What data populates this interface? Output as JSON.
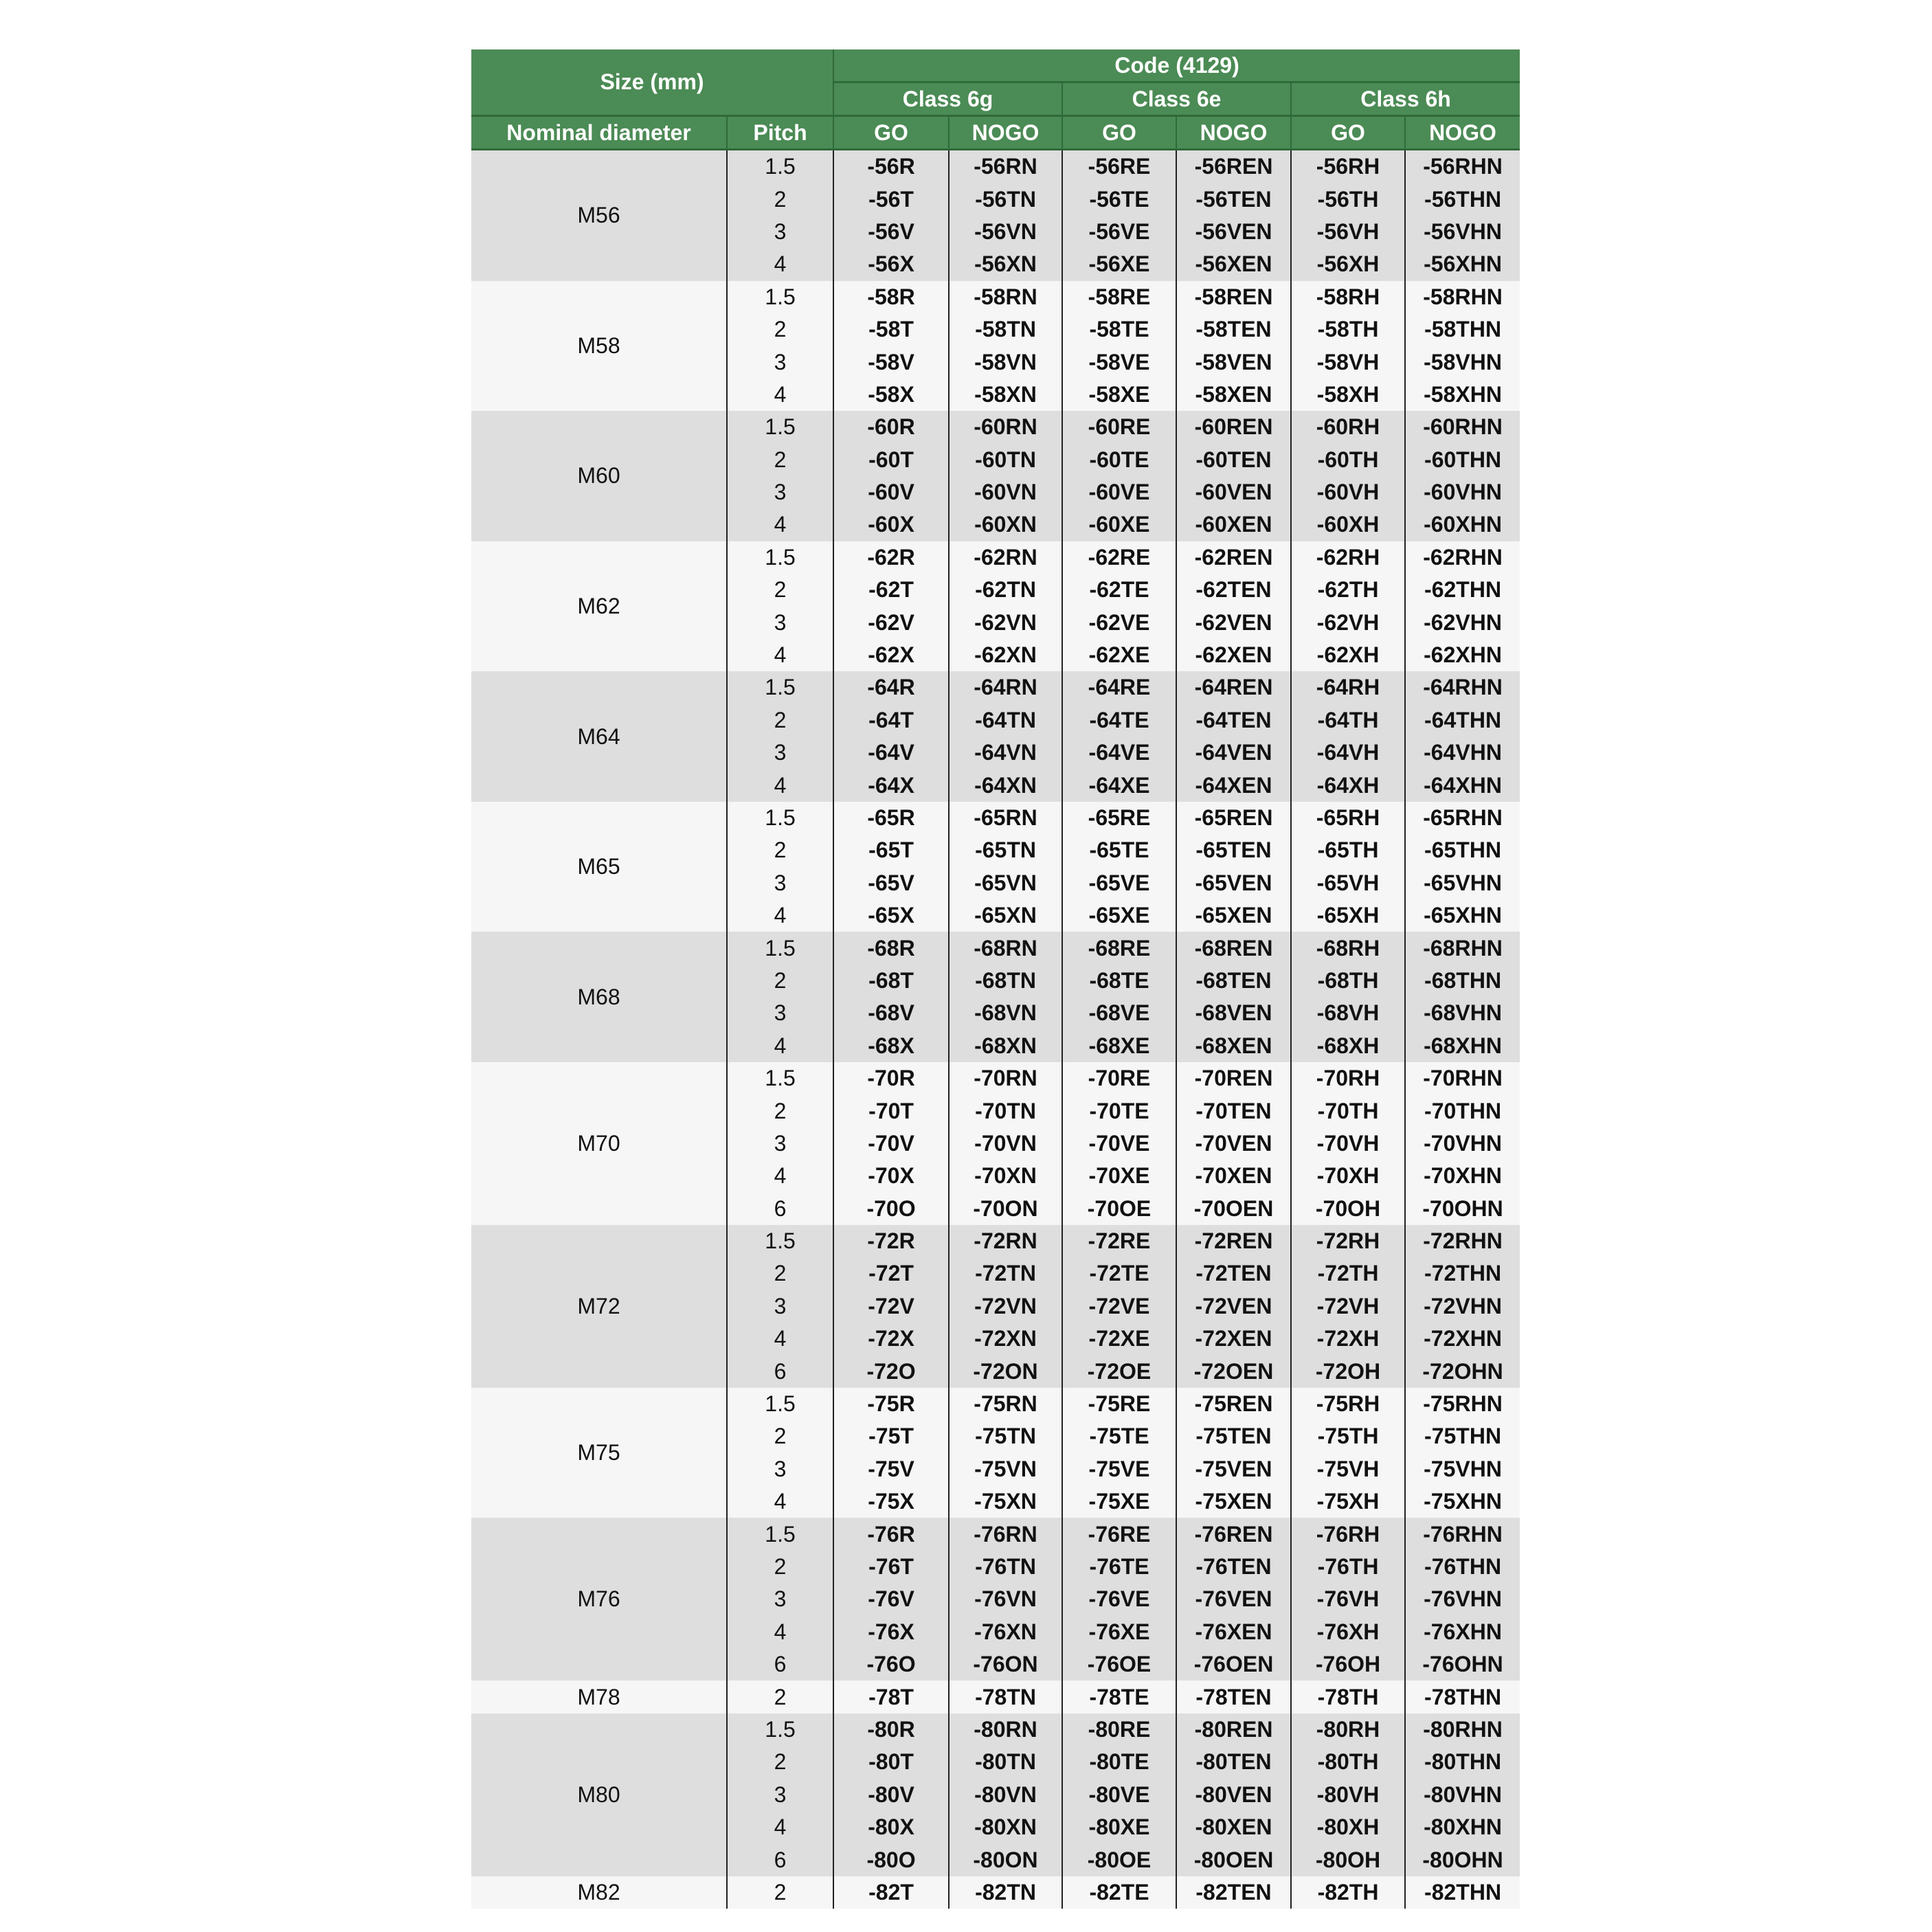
{
  "header": {
    "size_label": "Size (mm)",
    "code_label": "Code (4129)",
    "classes": [
      "Class 6g",
      "Class 6e",
      "Class 6h"
    ],
    "nominal_label": "Nominal diameter",
    "pitch_label": "Pitch",
    "sub_labels": [
      "GO",
      "NOGO",
      "GO",
      "NOGO",
      "GO",
      "NOGO"
    ]
  },
  "colors": {
    "header_bg": "#4b8b55",
    "row_dark": "#dedede",
    "row_light": "#f6f6f6"
  },
  "groups": [
    {
      "size": "M56",
      "rows": [
        {
          "pitch": "1.5",
          "codes": [
            "-56R",
            "-56RN",
            "-56RE",
            "-56REN",
            "-56RH",
            "-56RHN"
          ]
        },
        {
          "pitch": "2",
          "codes": [
            "-56T",
            "-56TN",
            "-56TE",
            "-56TEN",
            "-56TH",
            "-56THN"
          ]
        },
        {
          "pitch": "3",
          "codes": [
            "-56V",
            "-56VN",
            "-56VE",
            "-56VEN",
            "-56VH",
            "-56VHN"
          ]
        },
        {
          "pitch": "4",
          "codes": [
            "-56X",
            "-56XN",
            "-56XE",
            "-56XEN",
            "-56XH",
            "-56XHN"
          ]
        }
      ]
    },
    {
      "size": "M58",
      "rows": [
        {
          "pitch": "1.5",
          "codes": [
            "-58R",
            "-58RN",
            "-58RE",
            "-58REN",
            "-58RH",
            "-58RHN"
          ]
        },
        {
          "pitch": "2",
          "codes": [
            "-58T",
            "-58TN",
            "-58TE",
            "-58TEN",
            "-58TH",
            "-58THN"
          ]
        },
        {
          "pitch": "3",
          "codes": [
            "-58V",
            "-58VN",
            "-58VE",
            "-58VEN",
            "-58VH",
            "-58VHN"
          ]
        },
        {
          "pitch": "4",
          "codes": [
            "-58X",
            "-58XN",
            "-58XE",
            "-58XEN",
            "-58XH",
            "-58XHN"
          ]
        }
      ]
    },
    {
      "size": "M60",
      "rows": [
        {
          "pitch": "1.5",
          "codes": [
            "-60R",
            "-60RN",
            "-60RE",
            "-60REN",
            "-60RH",
            "-60RHN"
          ]
        },
        {
          "pitch": "2",
          "codes": [
            "-60T",
            "-60TN",
            "-60TE",
            "-60TEN",
            "-60TH",
            "-60THN"
          ]
        },
        {
          "pitch": "3",
          "codes": [
            "-60V",
            "-60VN",
            "-60VE",
            "-60VEN",
            "-60VH",
            "-60VHN"
          ]
        },
        {
          "pitch": "4",
          "codes": [
            "-60X",
            "-60XN",
            "-60XE",
            "-60XEN",
            "-60XH",
            "-60XHN"
          ]
        }
      ]
    },
    {
      "size": "M62",
      "rows": [
        {
          "pitch": "1.5",
          "codes": [
            "-62R",
            "-62RN",
            "-62RE",
            "-62REN",
            "-62RH",
            "-62RHN"
          ]
        },
        {
          "pitch": "2",
          "codes": [
            "-62T",
            "-62TN",
            "-62TE",
            "-62TEN",
            "-62TH",
            "-62THN"
          ]
        },
        {
          "pitch": "3",
          "codes": [
            "-62V",
            "-62VN",
            "-62VE",
            "-62VEN",
            "-62VH",
            "-62VHN"
          ]
        },
        {
          "pitch": "4",
          "codes": [
            "-62X",
            "-62XN",
            "-62XE",
            "-62XEN",
            "-62XH",
            "-62XHN"
          ]
        }
      ]
    },
    {
      "size": "M64",
      "rows": [
        {
          "pitch": "1.5",
          "codes": [
            "-64R",
            "-64RN",
            "-64RE",
            "-64REN",
            "-64RH",
            "-64RHN"
          ]
        },
        {
          "pitch": "2",
          "codes": [
            "-64T",
            "-64TN",
            "-64TE",
            "-64TEN",
            "-64TH",
            "-64THN"
          ]
        },
        {
          "pitch": "3",
          "codes": [
            "-64V",
            "-64VN",
            "-64VE",
            "-64VEN",
            "-64VH",
            "-64VHN"
          ]
        },
        {
          "pitch": "4",
          "codes": [
            "-64X",
            "-64XN",
            "-64XE",
            "-64XEN",
            "-64XH",
            "-64XHN"
          ]
        }
      ]
    },
    {
      "size": "M65",
      "rows": [
        {
          "pitch": "1.5",
          "codes": [
            "-65R",
            "-65RN",
            "-65RE",
            "-65REN",
            "-65RH",
            "-65RHN"
          ]
        },
        {
          "pitch": "2",
          "codes": [
            "-65T",
            "-65TN",
            "-65TE",
            "-65TEN",
            "-65TH",
            "-65THN"
          ]
        },
        {
          "pitch": "3",
          "codes": [
            "-65V",
            "-65VN",
            "-65VE",
            "-65VEN",
            "-65VH",
            "-65VHN"
          ]
        },
        {
          "pitch": "4",
          "codes": [
            "-65X",
            "-65XN",
            "-65XE",
            "-65XEN",
            "-65XH",
            "-65XHN"
          ]
        }
      ]
    },
    {
      "size": "M68",
      "rows": [
        {
          "pitch": "1.5",
          "codes": [
            "-68R",
            "-68RN",
            "-68RE",
            "-68REN",
            "-68RH",
            "-68RHN"
          ]
        },
        {
          "pitch": "2",
          "codes": [
            "-68T",
            "-68TN",
            "-68TE",
            "-68TEN",
            "-68TH",
            "-68THN"
          ]
        },
        {
          "pitch": "3",
          "codes": [
            "-68V",
            "-68VN",
            "-68VE",
            "-68VEN",
            "-68VH",
            "-68VHN"
          ]
        },
        {
          "pitch": "4",
          "codes": [
            "-68X",
            "-68XN",
            "-68XE",
            "-68XEN",
            "-68XH",
            "-68XHN"
          ]
        }
      ]
    },
    {
      "size": "M70",
      "rows": [
        {
          "pitch": "1.5",
          "codes": [
            "-70R",
            "-70RN",
            "-70RE",
            "-70REN",
            "-70RH",
            "-70RHN"
          ]
        },
        {
          "pitch": "2",
          "codes": [
            "-70T",
            "-70TN",
            "-70TE",
            "-70TEN",
            "-70TH",
            "-70THN"
          ]
        },
        {
          "pitch": "3",
          "codes": [
            "-70V",
            "-70VN",
            "-70VE",
            "-70VEN",
            "-70VH",
            "-70VHN"
          ]
        },
        {
          "pitch": "4",
          "codes": [
            "-70X",
            "-70XN",
            "-70XE",
            "-70XEN",
            "-70XH",
            "-70XHN"
          ]
        },
        {
          "pitch": "6",
          "codes": [
            "-70O",
            "-70ON",
            "-70OE",
            "-70OEN",
            "-70OH",
            "-70OHN"
          ]
        }
      ]
    },
    {
      "size": "M72",
      "rows": [
        {
          "pitch": "1.5",
          "codes": [
            "-72R",
            "-72RN",
            "-72RE",
            "-72REN",
            "-72RH",
            "-72RHN"
          ]
        },
        {
          "pitch": "2",
          "codes": [
            "-72T",
            "-72TN",
            "-72TE",
            "-72TEN",
            "-72TH",
            "-72THN"
          ]
        },
        {
          "pitch": "3",
          "codes": [
            "-72V",
            "-72VN",
            "-72VE",
            "-72VEN",
            "-72VH",
            "-72VHN"
          ]
        },
        {
          "pitch": "4",
          "codes": [
            "-72X",
            "-72XN",
            "-72XE",
            "-72XEN",
            "-72XH",
            "-72XHN"
          ]
        },
        {
          "pitch": "6",
          "codes": [
            "-72O",
            "-72ON",
            "-72OE",
            "-72OEN",
            "-72OH",
            "-72OHN"
          ]
        }
      ]
    },
    {
      "size": "M75",
      "rows": [
        {
          "pitch": "1.5",
          "codes": [
            "-75R",
            "-75RN",
            "-75RE",
            "-75REN",
            "-75RH",
            "-75RHN"
          ]
        },
        {
          "pitch": "2",
          "codes": [
            "-75T",
            "-75TN",
            "-75TE",
            "-75TEN",
            "-75TH",
            "-75THN"
          ]
        },
        {
          "pitch": "3",
          "codes": [
            "-75V",
            "-75VN",
            "-75VE",
            "-75VEN",
            "-75VH",
            "-75VHN"
          ]
        },
        {
          "pitch": "4",
          "codes": [
            "-75X",
            "-75XN",
            "-75XE",
            "-75XEN",
            "-75XH",
            "-75XHN"
          ]
        }
      ]
    },
    {
      "size": "M76",
      "rows": [
        {
          "pitch": "1.5",
          "codes": [
            "-76R",
            "-76RN",
            "-76RE",
            "-76REN",
            "-76RH",
            "-76RHN"
          ]
        },
        {
          "pitch": "2",
          "codes": [
            "-76T",
            "-76TN",
            "-76TE",
            "-76TEN",
            "-76TH",
            "-76THN"
          ]
        },
        {
          "pitch": "3",
          "codes": [
            "-76V",
            "-76VN",
            "-76VE",
            "-76VEN",
            "-76VH",
            "-76VHN"
          ]
        },
        {
          "pitch": "4",
          "codes": [
            "-76X",
            "-76XN",
            "-76XE",
            "-76XEN",
            "-76XH",
            "-76XHN"
          ]
        },
        {
          "pitch": "6",
          "codes": [
            "-76O",
            "-76ON",
            "-76OE",
            "-76OEN",
            "-76OH",
            "-76OHN"
          ]
        }
      ]
    },
    {
      "size": "M78",
      "rows": [
        {
          "pitch": "2",
          "codes": [
            "-78T",
            "-78TN",
            "-78TE",
            "-78TEN",
            "-78TH",
            "-78THN"
          ]
        }
      ]
    },
    {
      "size": "M80",
      "rows": [
        {
          "pitch": "1.5",
          "codes": [
            "-80R",
            "-80RN",
            "-80RE",
            "-80REN",
            "-80RH",
            "-80RHN"
          ]
        },
        {
          "pitch": "2",
          "codes": [
            "-80T",
            "-80TN",
            "-80TE",
            "-80TEN",
            "-80TH",
            "-80THN"
          ]
        },
        {
          "pitch": "3",
          "codes": [
            "-80V",
            "-80VN",
            "-80VE",
            "-80VEN",
            "-80VH",
            "-80VHN"
          ]
        },
        {
          "pitch": "4",
          "codes": [
            "-80X",
            "-80XN",
            "-80XE",
            "-80XEN",
            "-80XH",
            "-80XHN"
          ]
        },
        {
          "pitch": "6",
          "codes": [
            "-80O",
            "-80ON",
            "-80OE",
            "-80OEN",
            "-80OH",
            "-80OHN"
          ]
        }
      ]
    },
    {
      "size": "M82",
      "rows": [
        {
          "pitch": "2",
          "codes": [
            "-82T",
            "-82TN",
            "-82TE",
            "-82TEN",
            "-82TH",
            "-82THN"
          ]
        }
      ]
    }
  ]
}
